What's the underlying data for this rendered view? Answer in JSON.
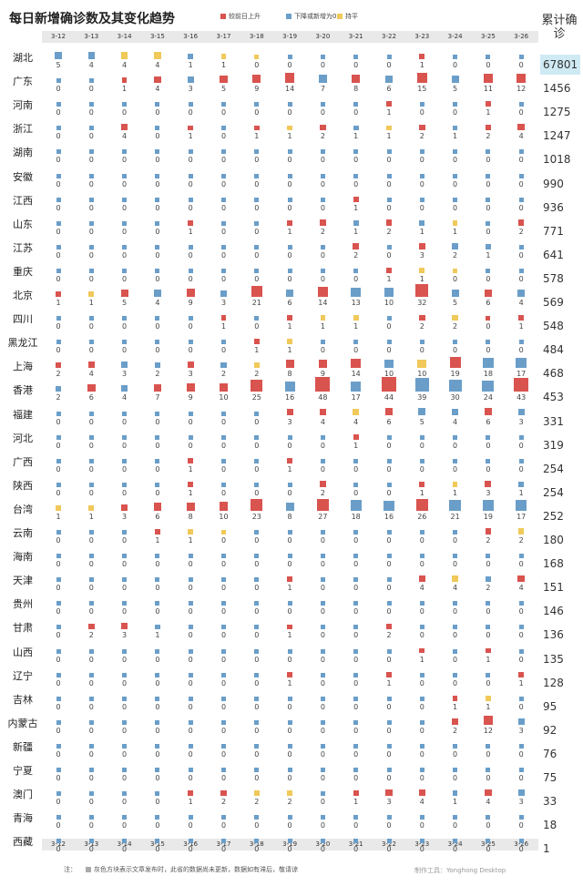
{
  "title": "每日新增确诊数及其变化趋势",
  "legend": [
    {
      "label": "较前日上升",
      "color": "#d9534f"
    },
    {
      "label": "下降或新增为0",
      "color": "#6a9ec9"
    },
    {
      "label": "持平",
      "color": "#f0c95a"
    }
  ],
  "total_header": "累计确诊",
  "note_label": "注：",
  "note_text": "灰色方块表示文章发布时，此省的数据尚未更新，数据如有滞后，敬请谅",
  "credit": "制作工具：Yonghong Desktop",
  "chart_data": {
    "type": "table",
    "title": "每日新增确诊数及其变化趋势",
    "dates": [
      "3-12",
      "3-13",
      "3-14",
      "3-15",
      "3-16",
      "3-17",
      "3-18",
      "3-19",
      "3-20",
      "3-21",
      "3-22",
      "3-23",
      "3-24",
      "3-25",
      "3-26"
    ],
    "rows": [
      {
        "province": "湖北",
        "total": "67801",
        "values": [
          5,
          4,
          4,
          4,
          1,
          1,
          0,
          0,
          0,
          0,
          0,
          1,
          0,
          0,
          0
        ],
        "trend": "bbyybyybbbbrbbb"
      },
      {
        "province": "广东",
        "total": "1456",
        "values": [
          0,
          0,
          1,
          4,
          3,
          5,
          9,
          14,
          7,
          8,
          6,
          15,
          5,
          11,
          12
        ],
        "trend": "bbrrbrrrbrbrbrr"
      },
      {
        "province": "河南",
        "total": "1275",
        "values": [
          0,
          0,
          0,
          0,
          0,
          0,
          0,
          0,
          0,
          0,
          1,
          0,
          0,
          1,
          0
        ],
        "trend": "bbbbbbbbbbrbbrb"
      },
      {
        "province": "浙江",
        "total": "1247",
        "values": [
          0,
          0,
          4,
          0,
          1,
          0,
          1,
          1,
          2,
          1,
          1,
          2,
          1,
          2,
          4
        ],
        "trend": "bbrbrbryrbyrbrr"
      },
      {
        "province": "湖南",
        "total": "1018",
        "values": [
          0,
          0,
          0,
          0,
          0,
          0,
          0,
          0,
          0,
          0,
          0,
          0,
          0,
          0,
          0
        ],
        "trend": "bbbbbbbbbbbbbbb"
      },
      {
        "province": "安徽",
        "total": "990",
        "values": [
          0,
          0,
          0,
          0,
          0,
          0,
          0,
          0,
          0,
          0,
          0,
          0,
          0,
          0,
          0
        ],
        "trend": "bbbbbbbbbbbbbbb"
      },
      {
        "province": "江西",
        "total": "936",
        "values": [
          0,
          0,
          0,
          0,
          0,
          0,
          0,
          0,
          0,
          1,
          0,
          0,
          0,
          0,
          0
        ],
        "trend": "bbbbbbbbbrbbbbb"
      },
      {
        "province": "山东",
        "total": "771",
        "values": [
          0,
          0,
          0,
          0,
          1,
          0,
          0,
          1,
          2,
          1,
          2,
          1,
          1,
          0,
          2
        ],
        "trend": "bbbbrbbrrbrbybr"
      },
      {
        "province": "江苏",
        "total": "641",
        "values": [
          0,
          0,
          0,
          0,
          0,
          0,
          0,
          0,
          0,
          2,
          0,
          3,
          2,
          1,
          0
        ],
        "trend": "bbbbbbbbbrbrbbb"
      },
      {
        "province": "重庆",
        "total": "578",
        "values": [
          0,
          0,
          0,
          0,
          0,
          0,
          0,
          0,
          0,
          0,
          1,
          1,
          0,
          0,
          0
        ],
        "trend": "bbbbbbbbbbryybb"
      },
      {
        "province": "北京",
        "total": "569",
        "values": [
          1,
          1,
          5,
          4,
          9,
          3,
          21,
          6,
          14,
          13,
          10,
          32,
          5,
          6,
          4
        ],
        "trend": "ryrbrbrbrbbrbrb"
      },
      {
        "province": "四川",
        "total": "548",
        "values": [
          0,
          0,
          0,
          0,
          0,
          1,
          0,
          1,
          1,
          1,
          0,
          2,
          2,
          0,
          1
        ],
        "trend": "bbbbbrbryybryrr"
      },
      {
        "province": "黑龙江",
        "total": "484",
        "values": [
          0,
          0,
          0,
          0,
          0,
          0,
          1,
          1,
          0,
          0,
          0,
          0,
          0,
          0,
          0
        ],
        "trend": "bbbbbbrybbbbbbb"
      },
      {
        "province": "上海",
        "total": "468",
        "values": [
          2,
          4,
          3,
          2,
          3,
          2,
          2,
          8,
          9,
          14,
          10,
          10,
          19,
          18,
          17
        ],
        "trend": "rrbbrbyrrrbyrbb"
      },
      {
        "province": "香港",
        "total": "453",
        "values": [
          2,
          6,
          4,
          7,
          9,
          10,
          25,
          16,
          48,
          17,
          44,
          39,
          30,
          24,
          43
        ],
        "trend": "brbrrrrbrbrbbbr"
      },
      {
        "province": "福建",
        "total": "331",
        "values": [
          0,
          0,
          0,
          0,
          0,
          0,
          0,
          3,
          4,
          4,
          6,
          5,
          4,
          6,
          3
        ],
        "trend": "bbbbbbbrryrbbrb"
      },
      {
        "province": "河北",
        "total": "319",
        "values": [
          0,
          0,
          0,
          0,
          0,
          0,
          0,
          0,
          0,
          1,
          0,
          0,
          0,
          0,
          0
        ],
        "trend": "bbbbbbbbbrbbbbb"
      },
      {
        "province": "广西",
        "total": "254",
        "values": [
          0,
          0,
          0,
          0,
          1,
          0,
          0,
          1,
          0,
          0,
          0,
          0,
          0,
          0,
          0
        ],
        "trend": "bbbbrbbrbbbbbbb"
      },
      {
        "province": "陕西",
        "total": "254",
        "values": [
          0,
          0,
          0,
          0,
          1,
          0,
          0,
          0,
          2,
          0,
          0,
          1,
          1,
          3,
          1
        ],
        "trend": "bbbbrbbbrbbryrb"
      },
      {
        "province": "台湾",
        "total": "252",
        "values": [
          1,
          1,
          3,
          6,
          8,
          10,
          23,
          8,
          27,
          18,
          16,
          26,
          21,
          19,
          17
        ],
        "trend": "yyrrrrrbrbbrbbb"
      },
      {
        "province": "云南",
        "total": "180",
        "values": [
          0,
          0,
          0,
          1,
          1,
          0,
          0,
          0,
          0,
          0,
          0,
          0,
          0,
          2,
          2
        ],
        "trend": "bbbryybbbbbbbry"
      },
      {
        "province": "海南",
        "total": "168",
        "values": [
          0,
          0,
          0,
          0,
          0,
          0,
          0,
          0,
          0,
          0,
          0,
          0,
          0,
          0,
          0
        ],
        "trend": "bbbbbbbbbbbbbbb"
      },
      {
        "province": "天津",
        "total": "151",
        "values": [
          0,
          0,
          0,
          0,
          0,
          0,
          0,
          1,
          0,
          0,
          0,
          4,
          4,
          2,
          4
        ],
        "trend": "bbbbbbbrbbbrybr"
      },
      {
        "province": "贵州",
        "total": "146",
        "values": [
          0,
          0,
          0,
          0,
          0,
          0,
          0,
          0,
          0,
          0,
          0,
          0,
          0,
          0,
          0
        ],
        "trend": "bbbbbbbbbbbbbbb"
      },
      {
        "province": "甘肃",
        "total": "136",
        "values": [
          0,
          2,
          3,
          1,
          0,
          0,
          0,
          1,
          0,
          0,
          2,
          0,
          0,
          0,
          0
        ],
        "trend": "brrbbbbrbbrbbbb"
      },
      {
        "province": "山西",
        "total": "135",
        "values": [
          0,
          0,
          0,
          0,
          0,
          0,
          0,
          0,
          0,
          0,
          0,
          1,
          0,
          1,
          0
        ],
        "trend": "bbbbbbbbbbbrbrb"
      },
      {
        "province": "辽宁",
        "total": "128",
        "values": [
          0,
          0,
          0,
          0,
          0,
          0,
          0,
          1,
          0,
          0,
          1,
          0,
          0,
          0,
          1
        ],
        "trend": "bbbbbbbrbbrbbbr"
      },
      {
        "province": "吉林",
        "total": "95",
        "values": [
          0,
          0,
          0,
          0,
          0,
          0,
          0,
          0,
          0,
          0,
          0,
          0,
          1,
          1,
          0
        ],
        "trend": "bbbbbbbbbbbbryb"
      },
      {
        "province": "内蒙古",
        "total": "92",
        "values": [
          0,
          0,
          0,
          0,
          0,
          0,
          0,
          0,
          0,
          0,
          0,
          0,
          2,
          12,
          3
        ],
        "trend": "bbbbbbbbbbbbrrb"
      },
      {
        "province": "新疆",
        "total": "76",
        "values": [
          0,
          0,
          0,
          0,
          0,
          0,
          0,
          0,
          0,
          0,
          0,
          0,
          0,
          0,
          0
        ],
        "trend": "bbbbbbbbbbbbbbb"
      },
      {
        "province": "宁夏",
        "total": "75",
        "values": [
          0,
          0,
          0,
          0,
          0,
          0,
          0,
          0,
          0,
          0,
          0,
          0,
          0,
          0,
          0
        ],
        "trend": "bbbbbbbbbbbbbbb"
      },
      {
        "province": "澳门",
        "total": "33",
        "values": [
          0,
          0,
          0,
          0,
          1,
          2,
          2,
          2,
          0,
          1,
          3,
          4,
          1,
          4,
          3
        ],
        "trend": "bbbbrryybrrrbrb"
      },
      {
        "province": "青海",
        "total": "18",
        "values": [
          0,
          0,
          0,
          0,
          0,
          0,
          0,
          0,
          0,
          0,
          0,
          0,
          0,
          0,
          0
        ],
        "trend": "bbbbbbbbbbbbbbb"
      },
      {
        "province": "西藏",
        "total": "1",
        "values": [
          0,
          0,
          0,
          0,
          0,
          0,
          0,
          0,
          0,
          0,
          0,
          0,
          0,
          0,
          0
        ],
        "trend": "bbbbbbbbbbbbbbb"
      }
    ],
    "colors": {
      "r": "#d9534f",
      "b": "#6a9ec9",
      "y": "#f0c95a"
    }
  }
}
